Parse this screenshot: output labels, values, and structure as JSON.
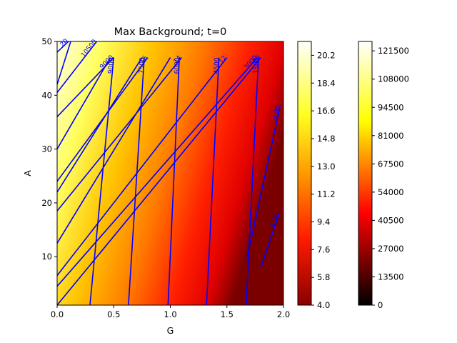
{
  "chart_data": {
    "type": "contour",
    "title": "Max Background; t=0",
    "xlabel": "G",
    "ylabel": "A",
    "xlim": [
      0.0,
      2.0
    ],
    "ylim": [
      1,
      50
    ],
    "x_ticks": [
      "0.0",
      "0.5",
      "1.0",
      "1.5",
      "2.0"
    ],
    "y_ticks": [
      "10",
      "20",
      "30",
      "40",
      "50"
    ],
    "field_colormap": "hot",
    "field_note": "filled colour field increases toward small G / large A",
    "colorbar_field": {
      "range": [
        4.0,
        21.1
      ],
      "colormap": "hot",
      "ticks": [
        "4.0",
        "5.8",
        "7.6",
        "9.4",
        "11.2",
        "13.0",
        "14.8",
        "16.6",
        "18.4",
        "20.2"
      ]
    },
    "colorbar_contour": {
      "range": [
        0,
        126000
      ],
      "colormap": "hot",
      "ticks": [
        "0",
        "13500",
        "27000",
        "40500",
        "54000",
        "67500",
        "81000",
        "94500",
        "108000",
        "121500"
      ]
    },
    "contour_color": "#0000ff",
    "contour_set_steep": {
      "note": "steep blue contour lines crossing the whole plot",
      "lines": [
        {
          "label": "20",
          "points": [
            [
              0.0,
              48.0
            ],
            [
              0.1,
              50.0
            ]
          ]
        },
        {
          "label": "10500",
          "points": [
            [
              0.0,
              40.5
            ],
            [
              0.35,
              50.0
            ]
          ]
        },
        {
          "label": "9000",
          "points": [
            [
              0.29,
              1.0
            ],
            [
              0.5,
              47.0
            ]
          ]
        },
        {
          "label": "7500",
          "points": [
            [
              0.63,
              1.0
            ],
            [
              0.77,
              47.0
            ]
          ]
        },
        {
          "label": "6000",
          "points": [
            [
              0.98,
              1.0
            ],
            [
              1.08,
              47.0
            ]
          ]
        },
        {
          "label": "4500",
          "points": [
            [
              1.32,
              1.0
            ],
            [
              1.43,
              47.0
            ]
          ]
        },
        {
          "label": "1500",
          "points": [
            [
              1.67,
              1.0
            ],
            [
              1.78,
              47.0
            ]
          ]
        },
        {
          "label": "6.00",
          "points": [
            [
              1.8,
              8.0
            ],
            [
              1.96,
              18.0
            ]
          ]
        },
        {
          "label": "8.00",
          "points": [
            [
              1.68,
              10.0
            ],
            [
              1.97,
              38.0
            ]
          ]
        }
      ]
    },
    "contour_set_shallow": {
      "note": "shallower blue contour lines rising from the left axis",
      "lines": [
        {
          "label": "",
          "points": [
            [
              0.0,
              42.0
            ],
            [
              0.12,
              50.0
            ]
          ]
        },
        {
          "label": "9000",
          "points": [
            [
              0.0,
              36.0
            ],
            [
              0.5,
              47.0
            ]
          ]
        },
        {
          "label": "",
          "points": [
            [
              0.0,
              30.0
            ],
            [
              0.47,
              47.0
            ]
          ]
        },
        {
          "label": "16",
          "points": [
            [
              0.0,
              24.0
            ],
            [
              0.8,
              47.0
            ]
          ]
        },
        {
          "label": "",
          "points": [
            [
              0.0,
              22.0
            ],
            [
              0.75,
              47.0
            ]
          ]
        },
        {
          "label": "14",
          "points": [
            [
              0.0,
              18.5
            ],
            [
              1.1,
              47.0
            ]
          ]
        },
        {
          "label": "",
          "points": [
            [
              0.0,
              12.5
            ],
            [
              1.0,
              47.0
            ]
          ]
        },
        {
          "label": "12",
          "points": [
            [
              0.0,
              6.5
            ],
            [
              1.5,
              47.0
            ]
          ]
        },
        {
          "label": "3000",
          "points": [
            [
              0.0,
              4.5
            ],
            [
              1.77,
              47.0
            ]
          ]
        },
        {
          "label": "10",
          "points": [
            [
              0.0,
              1.0
            ],
            [
              1.8,
              47.0
            ]
          ]
        }
      ]
    }
  }
}
